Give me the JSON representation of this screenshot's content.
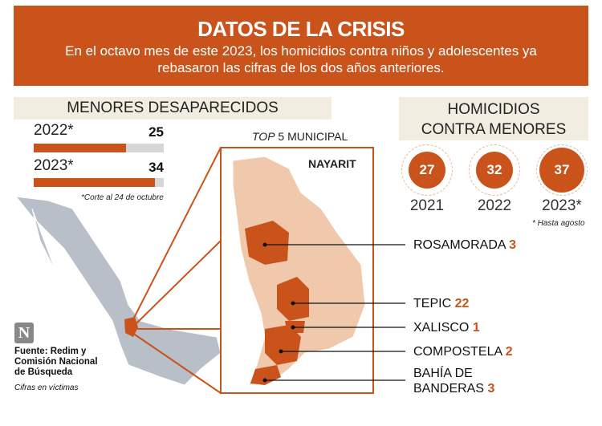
{
  "header": {
    "title": "DATOS DE LA CRISIS",
    "subtitle": "En el octavo mes de este 2023, los homicidios contra niños y adolescentes ya rebasaron las cifras de los dos años anteriores."
  },
  "missing": {
    "title": "MENORES DESAPARECIDOS",
    "rows": [
      {
        "year": "2022*",
        "value": "25",
        "fill_pct": 71
      },
      {
        "year": "2023*",
        "value": "34",
        "fill_pct": 93
      }
    ],
    "note": "*Corte al 24 de octubre"
  },
  "homicides": {
    "title_line1": "HOMICIDIOS",
    "title_line2": "CONTRA MENORES",
    "items": [
      {
        "year": "2021",
        "value": "27"
      },
      {
        "year": "2022",
        "value": "32"
      },
      {
        "year": "2023*",
        "value": "37"
      }
    ],
    "note": "* Hasta agosto"
  },
  "map": {
    "top_label_italic": "TOP",
    "top_label_rest": " 5 MUNICIPAL",
    "state": "NAYARIT",
    "municipalities": [
      {
        "name": "ROSAMORADA",
        "value": "3"
      },
      {
        "name": "TEPIC",
        "value": "22"
      },
      {
        "name": "XALISCO",
        "value": "1"
      },
      {
        "name": "COMPOSTELA",
        "value": "2"
      },
      {
        "name": "BAHÍA DE",
        "name2": "BANDERAS",
        "value": "3"
      }
    ]
  },
  "source": {
    "line1": "Fuente: Redim y",
    "line2": "Comisión Nacional",
    "line3": "de Búsqueda",
    "note": "Cifras en víctimas",
    "watermark": "N"
  },
  "colors": {
    "accent": "#c9531a",
    "light": "#f0c9ad",
    "band": "#f1ede0",
    "map_gray": "#b8bfc8"
  }
}
